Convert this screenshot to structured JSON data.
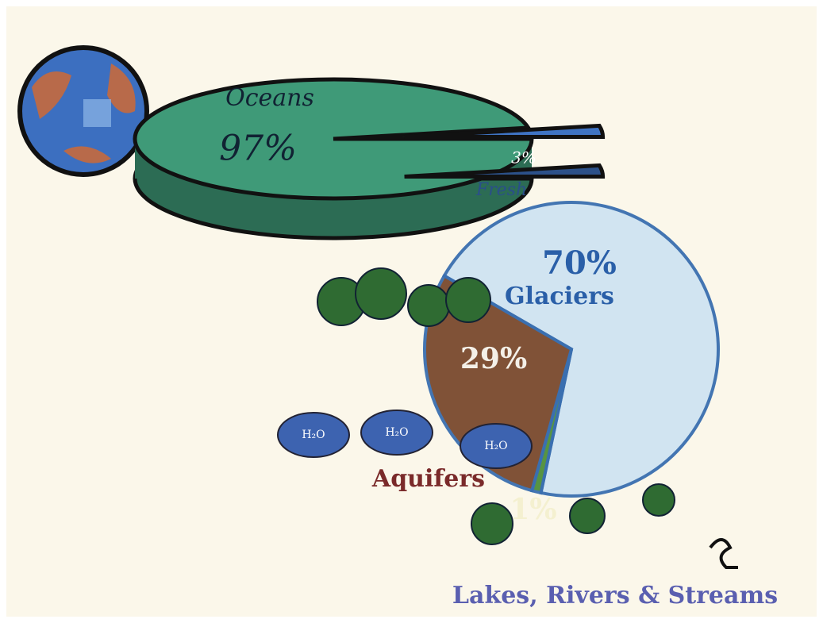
{
  "chart_data": [
    {
      "type": "pie",
      "categories": [
        "Oceans",
        "Fresh"
      ],
      "values": [
        97,
        3
      ],
      "value_labels": [
        "97%",
        "3%"
      ],
      "colors": [
        "#3f9a78",
        "#3f74c4"
      ]
    },
    {
      "type": "pie",
      "categories": [
        "Glaciers",
        "Lakes, Rivers & Streams",
        "Aquifers"
      ],
      "values": [
        70,
        1,
        29
      ],
      "value_labels": [
        "70%",
        "1%",
        "29%"
      ],
      "colors": [
        "#cfe3f2",
        "#4f8f3a",
        "#7a4a2e"
      ],
      "annotations": [
        "H₂O"
      ]
    }
  ]
}
